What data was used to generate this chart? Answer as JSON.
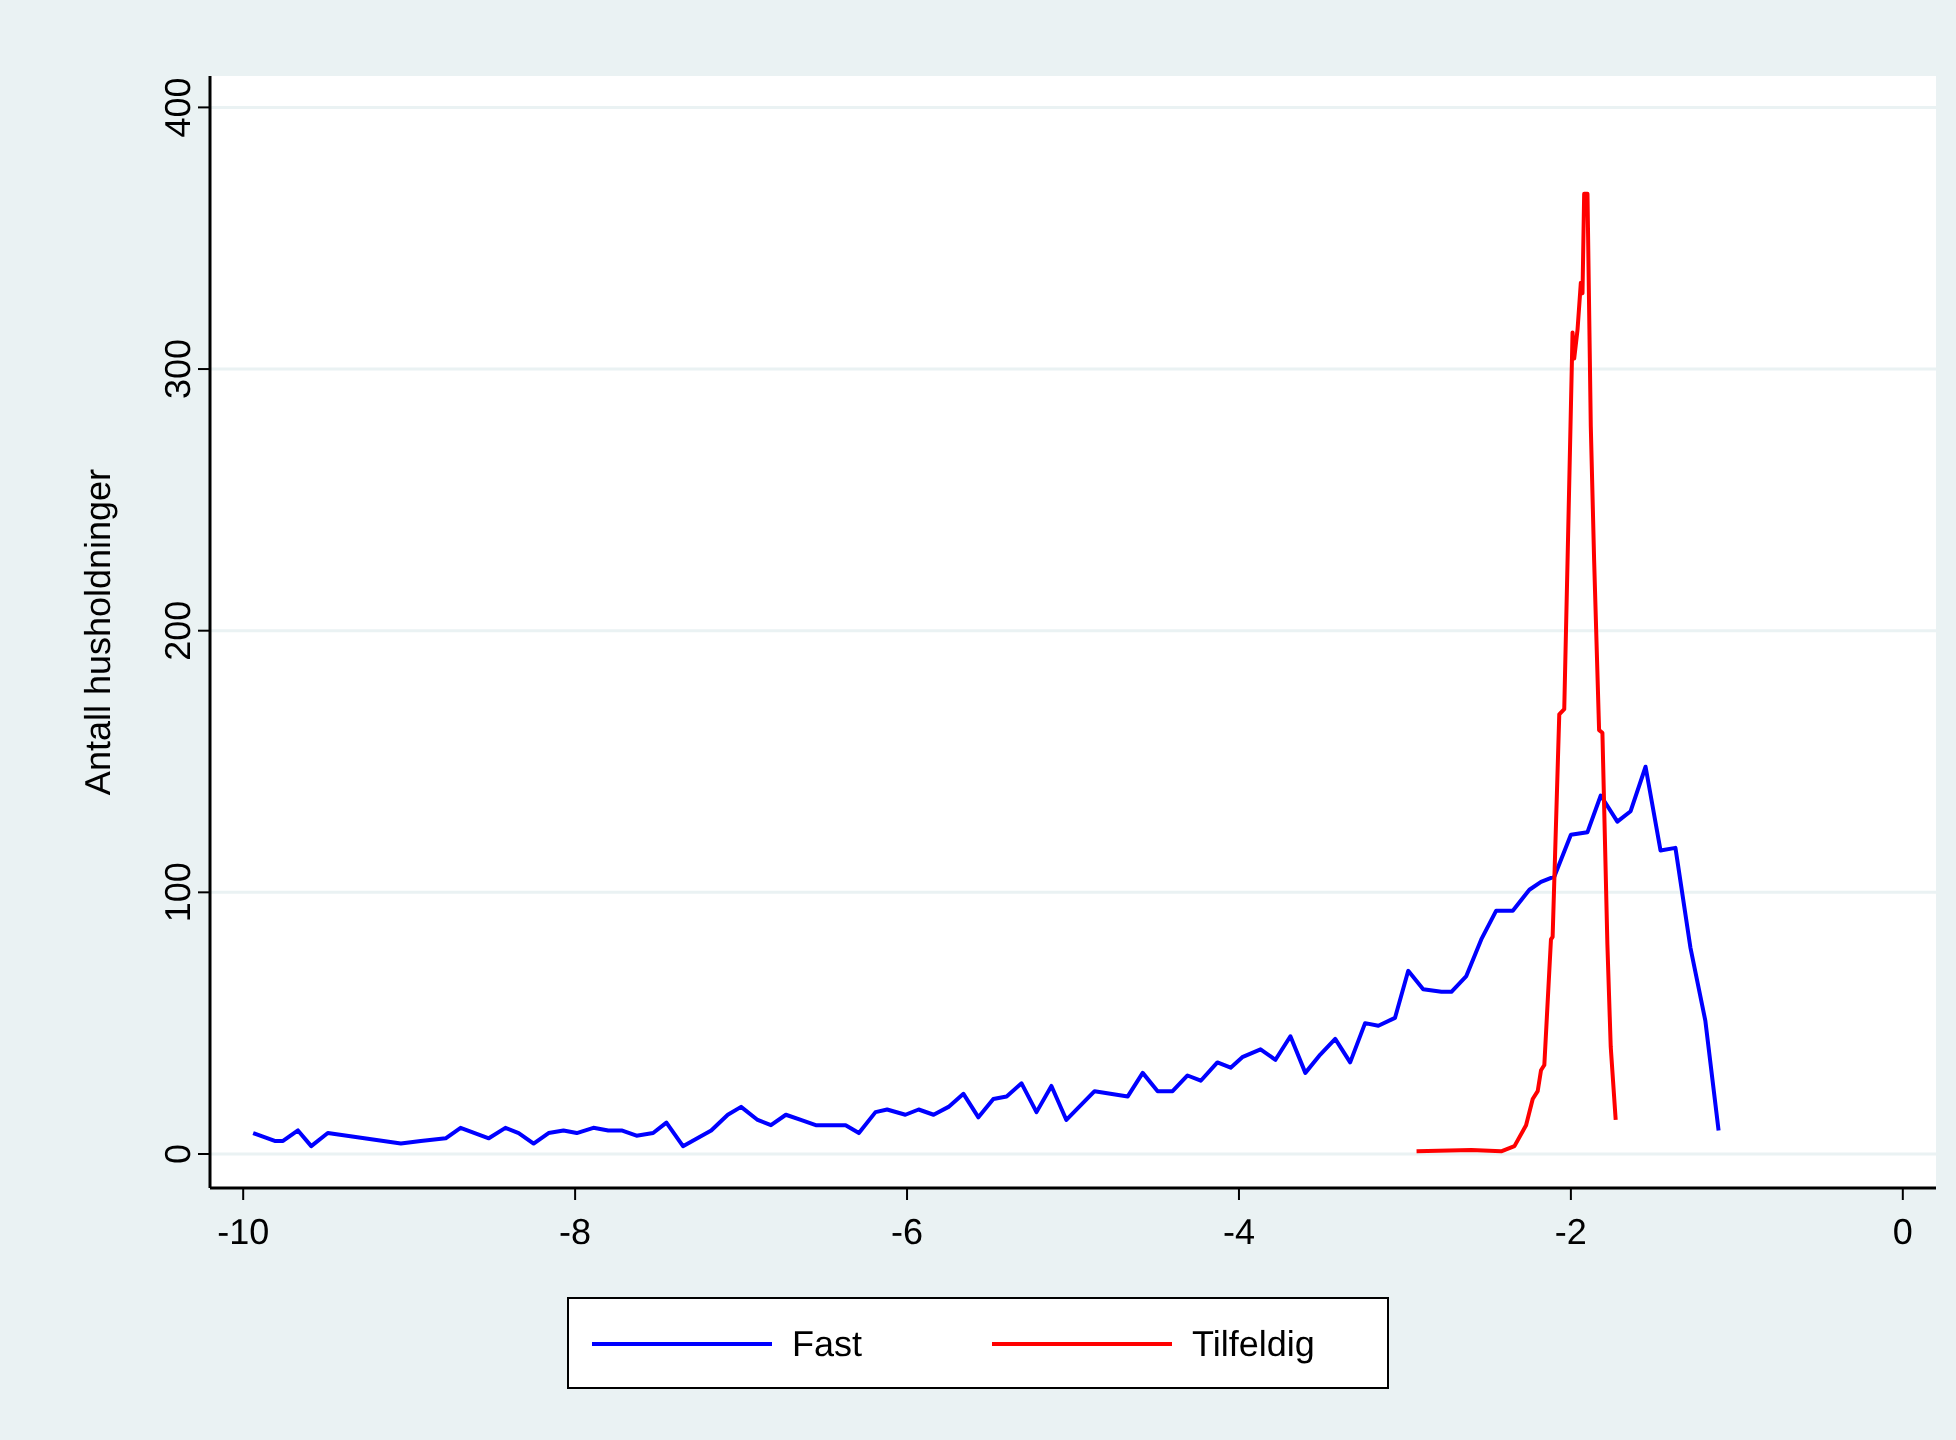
{
  "chart_data": {
    "type": "line",
    "ylabel": "Antall husholdninger",
    "xlim": [
      -10.2,
      0.2
    ],
    "xticks": [
      -10,
      -8,
      -6,
      -4,
      -2,
      0
    ],
    "ylim": [
      -13,
      412
    ],
    "yticks": [
      0,
      100,
      200,
      300,
      400
    ],
    "grid": "y",
    "legend": "bottom",
    "line_style": "solid",
    "marker": "none",
    "series": [
      {
        "name": "Fast",
        "color": "#0000ff",
        "x": [
          -9.94,
          -9.81,
          -9.76,
          -9.67,
          -9.59,
          -9.49,
          -9.05,
          -8.93,
          -8.78,
          -8.69,
          -8.52,
          -8.42,
          -8.34,
          -8.25,
          -8.16,
          -8.07,
          -7.99,
          -7.89,
          -7.8,
          -7.72,
          -7.63,
          -7.53,
          -7.45,
          -7.35,
          -7.18,
          -7.08,
          -7.0,
          -6.9,
          -6.82,
          -6.73,
          -6.64,
          -6.55,
          -6.46,
          -6.37,
          -6.29,
          -6.19,
          -6.12,
          -6.01,
          -5.93,
          -5.84,
          -5.75,
          -5.66,
          -5.57,
          -5.48,
          -5.4,
          -5.31,
          -5.22,
          -5.13,
          -5.04,
          -4.87,
          -4.67,
          -4.58,
          -4.49,
          -4.4,
          -4.31,
          -4.23,
          -4.13,
          -4.05,
          -3.98,
          -3.87,
          -3.78,
          -3.69,
          -3.6,
          -3.51,
          -3.42,
          -3.33,
          -3.24,
          -3.16,
          -3.06,
          -2.98,
          -2.89,
          -2.78,
          -2.72,
          -2.63,
          -2.54,
          -2.45,
          -2.35,
          -2.25,
          -2.18,
          -2.1,
          -2.0,
          -1.9,
          -1.82,
          -1.72,
          -1.64,
          -1.55,
          -1.46,
          -1.37,
          -1.28,
          -1.19,
          -1.11
        ],
        "values": [
          8,
          5,
          5,
          9,
          3,
          8,
          4,
          5,
          6,
          10,
          6,
          10,
          8,
          4,
          8,
          9,
          8,
          10,
          9,
          9,
          7,
          8,
          12,
          3,
          9,
          15,
          18,
          13,
          11,
          15,
          13,
          11,
          11,
          11,
          8,
          16,
          17,
          15,
          17,
          15,
          18,
          23,
          14,
          21,
          22,
          27,
          16,
          26,
          13,
          24,
          22,
          31,
          24,
          24,
          30,
          28,
          35,
          33,
          37,
          40,
          36,
          45,
          31,
          38,
          44,
          35,
          50,
          49,
          52,
          70,
          63,
          62,
          62,
          68,
          82,
          93,
          93,
          101,
          104,
          106,
          122,
          123,
          137,
          127,
          131,
          148,
          116,
          117,
          79,
          51,
          9
        ]
      },
      {
        "name": "Tilfeldig",
        "color": "#ff0000",
        "x": [
          -2.93,
          -2.6,
          -2.42,
          -2.34,
          -2.27,
          -2.23,
          -2.2,
          -2.18,
          -2.16,
          -2.12,
          -2.11,
          -2.07,
          -2.04,
          -2.02,
          -1.99,
          -1.98,
          -1.96,
          -1.94,
          -1.93,
          -1.92,
          -1.9,
          -1.88,
          -1.86,
          -1.83,
          -1.81,
          -1.78,
          -1.76,
          -1.73
        ],
        "values": [
          1,
          1.5,
          1,
          3,
          11,
          21,
          24,
          32,
          34,
          82,
          83,
          168,
          170,
          227,
          314,
          304,
          315,
          333,
          329,
          367,
          367,
          278,
          227,
          162,
          161,
          80,
          41,
          13
        ]
      }
    ]
  }
}
